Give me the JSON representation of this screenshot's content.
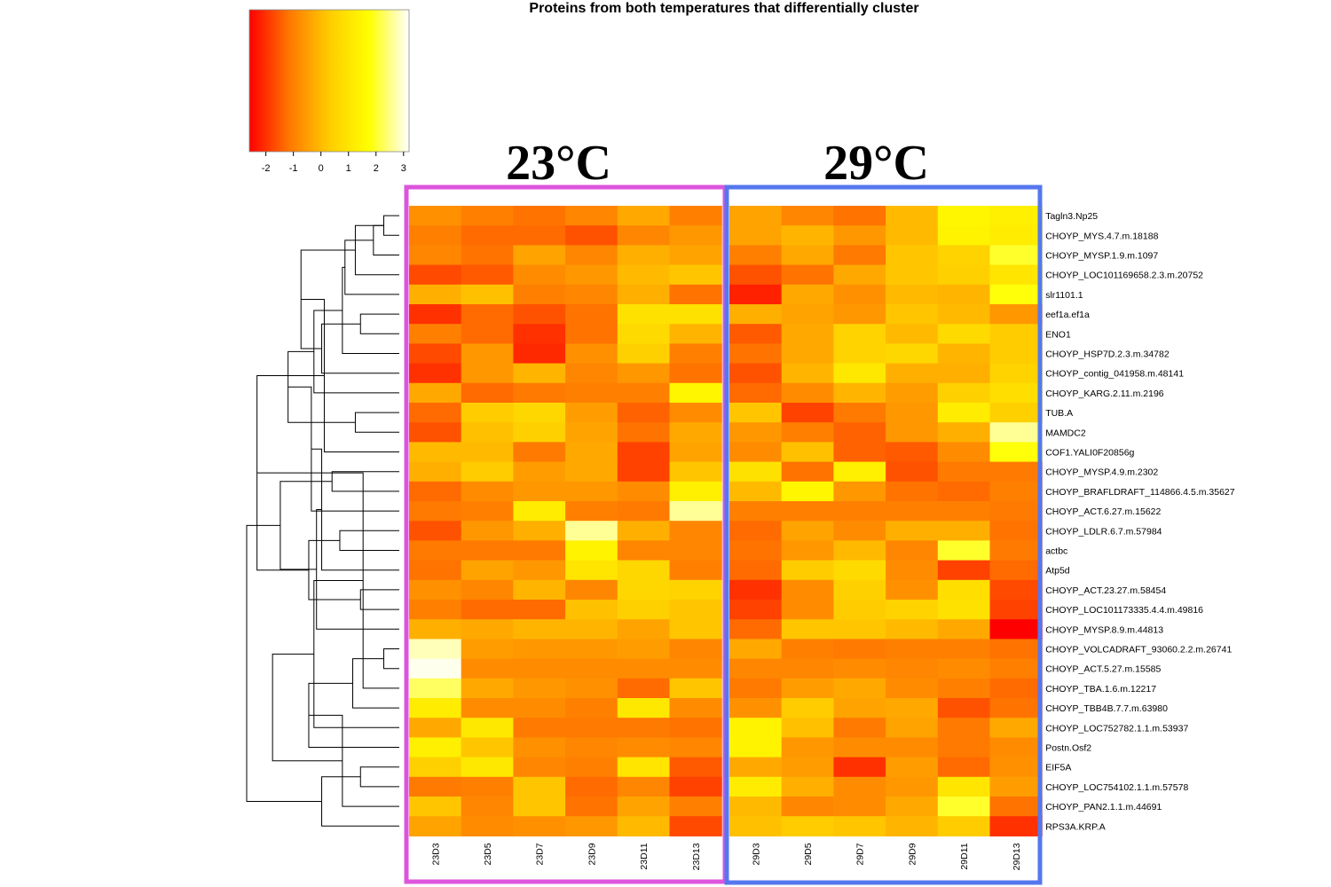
{
  "chart_data": {
    "type": "heatmap",
    "title": "Proteins from both temperatures that differentially cluster",
    "groups": [
      {
        "label": "23°C",
        "color": "#dd55dd",
        "columns": [
          "23D3",
          "23D5",
          "23D7",
          "23D9",
          "23D11",
          "23D13"
        ]
      },
      {
        "label": "29°C",
        "color": "#5577ee",
        "columns": [
          "29D3",
          "29D5",
          "29D7",
          "29D9",
          "29D11",
          "29D13"
        ]
      }
    ],
    "columns": [
      "23D3",
      "23D5",
      "23D7",
      "23D9",
      "23D11",
      "23D13",
      "29D3",
      "29D5",
      "29D7",
      "29D9",
      "29D11",
      "29D13"
    ],
    "rows": [
      "Tagln3.Np25",
      "CHOYP_MYS.4.7.m.18188",
      "CHOYP_MYSP.1.9.m.1097",
      "CHOYP_LOC101169658.2.3.m.20752",
      "slr1101.1",
      "eef1a.ef1a",
      "ENO1",
      "CHOYP_HSP7D.2.3.m.34782",
      "CHOYP_contig_041958.m.48141",
      "CHOYP_KARG.2.11.m.2196",
      "TUB.A",
      "MAMDC2",
      "COF1.YALI0F20856g",
      "CHOYP_MYSP.4.9.m.2302",
      "CHOYP_BRAFLDRAFT_114866.4.5.m.35627",
      "CHOYP_ACT.6.27.m.15622",
      "CHOYP_LDLR.6.7.m.57984",
      "actbc",
      "Atp5d",
      "CHOYP_ACT.23.27.m.58454",
      "CHOYP_LOC101173335.4.4.m.49816",
      "CHOYP_MYSP.8.9.m.44813",
      "CHOYP_VOLCADRAFT_93060.2.2.m.26741",
      "CHOYP_ACT.5.27.m.15585",
      "CHOYP_TBA.1.6.m.12217",
      "CHOYP_TBB4B.7.7.m.63980",
      "CHOYP_LOC752782.1.1.m.53937",
      "Postn.Osf2",
      "EIF5A",
      "CHOYP_LOC754102.1.1.m.57578",
      "CHOYP_PAN2.1.1.m.44691",
      "RPS3A.KRP.A"
    ],
    "values": [
      [
        -0.7,
        -1.0,
        -1.2,
        -0.9,
        -0.3,
        -1.0,
        -0.4,
        -0.9,
        -1.2,
        0.0,
        1.5,
        1.3
      ],
      [
        -1.0,
        -1.3,
        -1.3,
        -1.6,
        -0.9,
        -0.6,
        -0.4,
        -0.1,
        -0.6,
        0.0,
        1.4,
        1.2
      ],
      [
        -0.9,
        -1.2,
        -0.4,
        -0.9,
        -0.2,
        -0.4,
        -1.0,
        -0.3,
        -1.1,
        0.2,
        0.5,
        2.0
      ],
      [
        -1.7,
        -1.5,
        -0.8,
        -0.6,
        0.0,
        0.2,
        -1.6,
        -1.2,
        -0.3,
        0.2,
        0.4,
        1.0
      ],
      [
        -0.2,
        0.1,
        -1.0,
        -0.9,
        -0.2,
        -1.2,
        -2.2,
        -0.3,
        -0.7,
        0.0,
        -0.1,
        1.8
      ],
      [
        -2.0,
        -1.3,
        -1.6,
        -1.2,
        0.9,
        0.9,
        -0.2,
        -0.4,
        -0.6,
        0.2,
        0.0,
        -0.6
      ],
      [
        -1.0,
        -1.3,
        -2.0,
        -1.2,
        0.7,
        -0.1,
        -1.5,
        -0.3,
        0.5,
        0.0,
        0.7,
        0.3
      ],
      [
        -1.7,
        -0.6,
        -2.1,
        -0.7,
        0.4,
        -1.0,
        -1.2,
        -0.3,
        0.5,
        0.6,
        -0.1,
        0.3
      ],
      [
        -2.0,
        -0.6,
        -0.1,
        -0.9,
        -0.6,
        -1.2,
        -1.6,
        -0.1,
        1.1,
        -0.2,
        -0.2,
        0.5
      ],
      [
        -0.3,
        -1.3,
        -1.1,
        -1.0,
        -1.0,
        1.5,
        -1.3,
        -0.8,
        -0.1,
        -0.5,
        0.4,
        0.8
      ],
      [
        -1.3,
        0.3,
        0.6,
        -0.5,
        -1.4,
        -0.8,
        0.2,
        -1.8,
        -1.1,
        -0.6,
        1.2,
        0.4
      ],
      [
        -1.6,
        0.1,
        0.4,
        -0.4,
        -1.2,
        -0.3,
        -0.6,
        -1.0,
        -1.4,
        -0.6,
        -0.2,
        2.6
      ],
      [
        0.0,
        0.0,
        -1.1,
        -0.3,
        -1.8,
        -0.4,
        -0.8,
        0.1,
        -1.4,
        -1.5,
        -0.8,
        1.8
      ],
      [
        -0.2,
        0.3,
        -0.5,
        -0.3,
        -1.8,
        0.2,
        0.9,
        -1.2,
        1.3,
        -1.6,
        -1.1,
        -1.1
      ],
      [
        -1.3,
        -0.8,
        -0.6,
        -0.6,
        -0.8,
        1.3,
        0.0,
        1.5,
        -0.6,
        -1.2,
        -1.3,
        -1.0
      ],
      [
        -1.1,
        -1.0,
        1.2,
        -1.0,
        -1.1,
        2.6,
        -1.0,
        -1.0,
        -1.0,
        -1.0,
        -1.0,
        -1.1
      ],
      [
        -1.6,
        -0.6,
        -0.2,
        2.6,
        -0.2,
        -0.9,
        -1.3,
        -0.4,
        -0.8,
        -0.2,
        -0.2,
        -1.2
      ],
      [
        -1.1,
        -1.1,
        -1.1,
        1.4,
        -0.9,
        -0.9,
        -1.2,
        -0.6,
        0.0,
        -0.9,
        2.0,
        -1.1
      ],
      [
        -1.2,
        -0.4,
        -0.6,
        1.0,
        0.6,
        -1.0,
        -1.3,
        0.3,
        0.7,
        -0.8,
        -1.8,
        -1.3
      ],
      [
        -0.7,
        -0.9,
        -0.1,
        -0.9,
        0.6,
        0.5,
        -2.0,
        -0.8,
        0.4,
        -0.7,
        0.8,
        -1.7
      ],
      [
        -1.0,
        -1.3,
        -1.3,
        0.1,
        0.4,
        0.2,
        -1.8,
        -0.8,
        0.3,
        0.5,
        0.9,
        -1.8
      ],
      [
        -0.2,
        -0.3,
        -0.1,
        -0.1,
        -0.4,
        0.2,
        -1.3,
        0.2,
        0.2,
        0.0,
        -0.3,
        -2.6
      ],
      [
        2.8,
        -0.5,
        -0.6,
        -0.6,
        -0.5,
        -0.9,
        -0.3,
        -1.0,
        -1.1,
        -1.0,
        -1.0,
        -1.2
      ],
      [
        3.1,
        -0.8,
        -0.8,
        -0.8,
        -0.8,
        -0.8,
        -0.9,
        -0.9,
        -0.8,
        -0.9,
        -0.8,
        -1.0
      ],
      [
        2.3,
        -0.3,
        -0.6,
        -0.7,
        -1.3,
        0.2,
        -1.1,
        -0.5,
        -0.3,
        -0.8,
        -1.0,
        -1.3
      ],
      [
        1.2,
        -0.8,
        -0.8,
        -1.0,
        1.1,
        -0.8,
        -0.7,
        0.3,
        -0.4,
        -0.3,
        -1.6,
        -1.2
      ],
      [
        -0.3,
        1.1,
        -1.1,
        -1.1,
        -1.1,
        -1.2,
        1.4,
        0.1,
        -1.1,
        -0.4,
        -1.1,
        -0.3
      ],
      [
        1.3,
        0.2,
        -0.7,
        -0.9,
        -0.8,
        -0.9,
        1.4,
        -0.6,
        -0.8,
        -0.8,
        -1.1,
        -0.8
      ],
      [
        0.4,
        1.1,
        -0.9,
        -1.0,
        1.0,
        -1.5,
        -0.3,
        -0.5,
        -2.0,
        -0.5,
        -1.3,
        -0.7
      ],
      [
        -1.1,
        -1.0,
        0.2,
        -1.3,
        -0.9,
        -1.8,
        1.2,
        -0.2,
        -0.8,
        -0.6,
        1.0,
        -0.5
      ],
      [
        0.2,
        -0.9,
        0.2,
        -1.2,
        -0.4,
        -1.0,
        0.0,
        -0.9,
        -0.8,
        -0.3,
        2.0,
        -1.2
      ],
      [
        -0.4,
        -0.8,
        -0.7,
        -0.6,
        0.0,
        -1.7,
        0.1,
        0.3,
        0.2,
        -0.1,
        0.3,
        -2.0
      ]
    ],
    "color_scale": {
      "colors": [
        "#ff0000",
        "#ff7700",
        "#ffcc00",
        "#ffff00",
        "#ffffff"
      ],
      "range": [
        -2.6,
        3.2
      ],
      "ticks": [
        "-2",
        "-1",
        "0",
        "1",
        "2",
        "3"
      ],
      "tick_values": [
        -2,
        -1,
        0,
        1,
        2,
        3
      ]
    },
    "row_dendrogram": {
      "order": [
        0,
        1,
        2,
        3,
        4,
        5,
        6,
        7,
        8,
        9,
        10,
        11,
        12,
        13,
        14,
        15,
        16,
        17,
        18,
        19,
        20,
        21,
        22,
        23,
        24,
        25,
        26,
        27,
        28,
        29,
        30,
        31
      ],
      "merges": [
        [
          0,
          1,
          0.6
        ],
        [
          32,
          2,
          1.0
        ],
        [
          32,
          3,
          1.7
        ],
        [
          33,
          4,
          2.1
        ],
        [
          5,
          6,
          1.5
        ],
        [
          35,
          7,
          2.2
        ],
        [
          36,
          8,
          3.0
        ],
        [
          37,
          9,
          3.3
        ],
        [
          34,
          38,
          3.8
        ],
        [
          10,
          11,
          1.7
        ],
        [
          40,
          12,
          2.9
        ],
        [
          39,
          41,
          4.3
        ],
        [
          13,
          14,
          2.6
        ],
        [
          43,
          15,
          3.4
        ],
        [
          16,
          17,
          2.3
        ],
        [
          45,
          18,
          3.0
        ],
        [
          19,
          20,
          1.5
        ],
        [
          47,
          21,
          3.2
        ],
        [
          46,
          48,
          3.5
        ],
        [
          44,
          49,
          4.6
        ],
        [
          42,
          50,
          5.5
        ],
        [
          22,
          23,
          0.6
        ],
        [
          52,
          24,
          1.4
        ],
        [
          53,
          25,
          1.8
        ],
        [
          54,
          26,
          3.3
        ],
        [
          55,
          27,
          3.5
        ],
        [
          28,
          29,
          1.5
        ],
        [
          57,
          30,
          2.2
        ],
        [
          58,
          31,
          3.0
        ],
        [
          56,
          59,
          4.9
        ],
        [
          51,
          60,
          5.9
        ]
      ]
    }
  }
}
